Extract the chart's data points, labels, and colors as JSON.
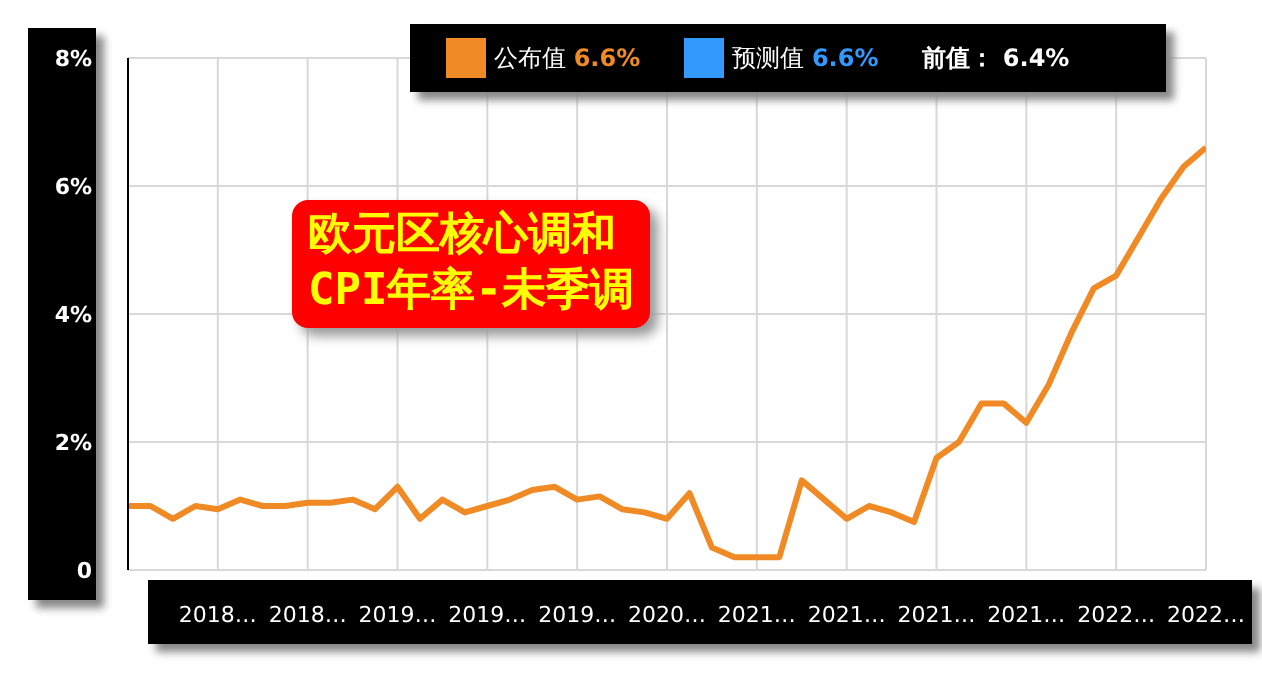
{
  "chart_data": {
    "type": "line",
    "title": "欧元区核心调和\nCPI年率-未季调",
    "categories": [
      null,
      null,
      null,
      null,
      "2018…",
      null,
      null,
      null,
      "2018…",
      null,
      null,
      null,
      "2019…",
      null,
      null,
      null,
      "2019…",
      null,
      null,
      null,
      "2019…",
      null,
      null,
      null,
      "2020…",
      null,
      null,
      null,
      "2021…",
      null,
      null,
      null,
      "2021…",
      null,
      null,
      null,
      "2021…",
      null,
      null,
      null,
      "2021…",
      null,
      null,
      null,
      "2022…",
      null,
      null,
      null,
      "2022…"
    ],
    "series": [
      {
        "color": "#f08a24",
        "values": [
          1.0,
          1.0,
          0.8,
          1.0,
          0.95,
          1.1,
          1.0,
          1.0,
          1.05,
          1.05,
          1.1,
          0.95,
          1.3,
          0.8,
          1.1,
          0.9,
          1.0,
          1.1,
          1.25,
          1.3,
          1.1,
          1.15,
          0.95,
          0.9,
          0.8,
          1.2,
          0.35,
          0.2,
          0.2,
          0.2,
          1.4,
          1.1,
          0.8,
          1.0,
          0.9,
          0.75,
          1.75,
          2.0,
          2.6,
          2.6,
          2.3,
          2.9,
          3.7,
          4.4,
          4.6,
          5.2,
          5.8,
          6.3,
          6.6
        ]
      }
    ],
    "ylim": [
      0,
      8
    ],
    "yticks": [
      {
        "value": 0,
        "label": "0"
      },
      {
        "value": 2,
        "label": "2%"
      },
      {
        "value": 4,
        "label": "4%"
      },
      {
        "value": 6,
        "label": "6%"
      },
      {
        "value": 8,
        "label": "8%"
      }
    ],
    "grid": true,
    "annotations": [
      "公布值 6.6%",
      "预测值 6.6%",
      "前值： 6.4%"
    ]
  }
}
